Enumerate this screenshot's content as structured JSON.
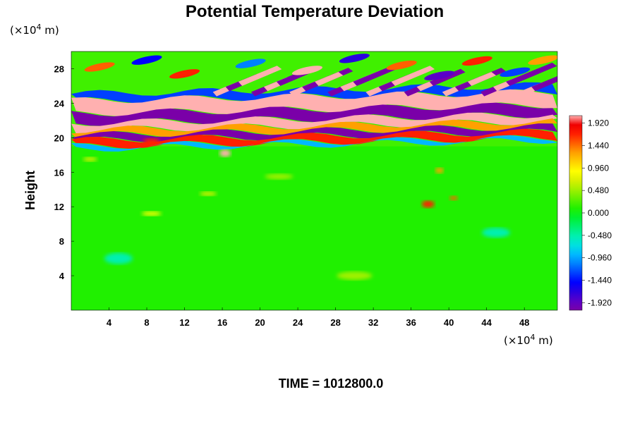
{
  "chart_data": {
    "type": "heatmap",
    "title": "Potential Temperature Deviation",
    "ylabel": "Height",
    "x_unit_label": "(×10",
    "x_unit_exp": "4",
    "x_unit_suffix": " m)",
    "y_unit_label": "(×10",
    "y_unit_exp": "4",
    "y_unit_suffix": " m)",
    "xlim": [
      0,
      51.5
    ],
    "ylim": [
      0,
      30
    ],
    "x_ticks": [
      "4",
      "8",
      "12",
      "16",
      "20",
      "24",
      "28",
      "32",
      "36",
      "40",
      "44",
      "48"
    ],
    "x_tick_values": [
      4,
      8,
      12,
      16,
      20,
      24,
      28,
      32,
      36,
      40,
      44,
      48
    ],
    "y_ticks": [
      "4",
      "8",
      "12",
      "16",
      "20",
      "24",
      "28"
    ],
    "y_tick_values": [
      4,
      8,
      12,
      16,
      20,
      24,
      28
    ],
    "colorbar": {
      "range": [
        -2.08,
        2.08
      ],
      "tick_labels": [
        "1.920",
        "1.440",
        "0.960",
        "0.480",
        "0.000",
        "-0.480",
        "-0.960",
        "-1.440",
        "-1.920"
      ],
      "tick_values": [
        1.92,
        1.44,
        0.96,
        0.48,
        0.0,
        -0.48,
        -0.96,
        -1.44,
        -1.92
      ],
      "colors": [
        "#7a00a8",
        "#5a00c8",
        "#2a00e0",
        "#0000ff",
        "#0040ff",
        "#0080ff",
        "#00b8ff",
        "#00e0e0",
        "#00f0b0",
        "#00f070",
        "#00f030",
        "#20f000",
        "#60f000",
        "#a0f000",
        "#d8f000",
        "#ffff00",
        "#ffd000",
        "#ffa000",
        "#ff6000",
        "#ff2000",
        "#f00000",
        "#ffb0b0"
      ]
    },
    "description_of_field": "background ~0; strong alternating bands of high and low values near heights 19-25; wave-like oscillations above 25; small isolated features below 20"
  },
  "footer": {
    "time_text": "TIME = 1012800.0"
  }
}
